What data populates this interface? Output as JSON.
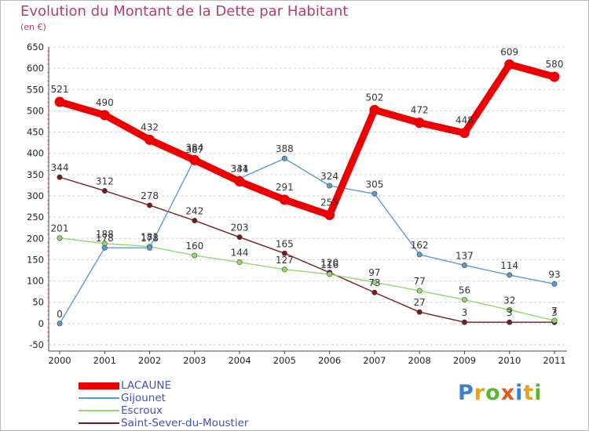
{
  "title": "Evolution du Montant de la Dette par Habitant",
  "subtitle": "(en €)",
  "logo": {
    "text": "Proxiti",
    "colors": [
      "#3a7fd1",
      "#e8a21c",
      "#5bb432",
      "#e35a1e",
      "#3a7fd1",
      "#e8a21c",
      "#5bb432"
    ]
  },
  "chart_data": {
    "type": "line",
    "title": "Evolution du Montant de la Dette par Habitant",
    "ylabel": "(en €)",
    "xlabel": "",
    "ylim": [
      -50,
      650
    ],
    "yticks": [
      -50,
      0,
      50,
      100,
      150,
      200,
      250,
      300,
      350,
      400,
      450,
      500,
      550,
      600,
      650
    ],
    "grid": "horizontal dashed",
    "legend_position": "bottom-left",
    "x": [
      "2000",
      "2001",
      "2002",
      "2003",
      "2004",
      "2005",
      "2006",
      "2007",
      "2008",
      "2009",
      "2010",
      "2011"
    ],
    "series": [
      {
        "name": "Saint-Sever-du-Moustier",
        "color": "#7a1a1a",
        "values": [
          344,
          312,
          278,
          242,
          203,
          165,
          120,
          73,
          27,
          3,
          3,
          3
        ]
      },
      {
        "name": "Escroux",
        "color": "#92d86a",
        "values": [
          201,
          188,
          181,
          160,
          144,
          127,
          116,
          97,
          77,
          56,
          32,
          7
        ]
      },
      {
        "name": "Gijounet",
        "color": "#5b9bd0",
        "values": [
          0,
          178,
          178,
          387,
          341,
          388,
          324,
          305,
          162,
          137,
          114,
          93
        ]
      },
      {
        "name": "LACAUNE",
        "color": "#ee0000",
        "values": [
          521,
          490,
          432,
          384,
          334,
          291,
          255,
          502,
          472,
          448,
          609,
          580
        ]
      }
    ],
    "legend_order": [
      "LACAUNE",
      "Gijounet",
      "Escroux",
      "Saint-Sever-du-Moustier"
    ]
  }
}
